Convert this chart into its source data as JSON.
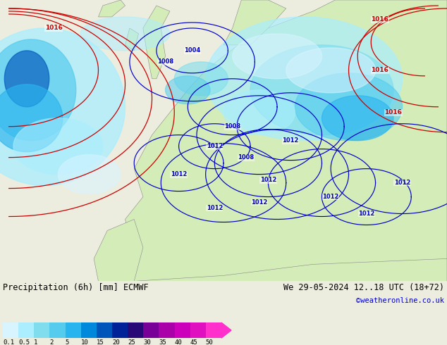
{
  "title_left": "Precipitation (6h) [mm] ECMWF",
  "title_right": "We 29-05-2024 12..18 UTC (18+72)",
  "credit": "©weatheronline.co.uk",
  "colorbar_values": [
    "0.1",
    "0.5",
    "1",
    "2",
    "5",
    "10",
    "15",
    "20",
    "25",
    "30",
    "35",
    "40",
    "45",
    "50"
  ],
  "colorbar_colors": [
    "#d8f4ff",
    "#aaeeff",
    "#80ddee",
    "#55ccee",
    "#28b4ee",
    "#0088dd",
    "#0055bb",
    "#002299",
    "#280877",
    "#780099",
    "#aa00aa",
    "#cc00bb",
    "#e010c0",
    "#ff30cc"
  ],
  "bg_color": "#ededdf",
  "ocean_color": "#b8ccd8",
  "land_color": "#d4ecb8",
  "red_contour": "#cc0000",
  "blue_contour": "#0000cc",
  "gray_coast": "#888888",
  "text_color": "#000000",
  "blue_text": "#0000cc",
  "title_fontsize": 8.5,
  "credit_fontsize": 7.5,
  "label_fontsize": 6.5,
  "figsize": [
    6.34,
    4.9
  ],
  "dpi": 100
}
